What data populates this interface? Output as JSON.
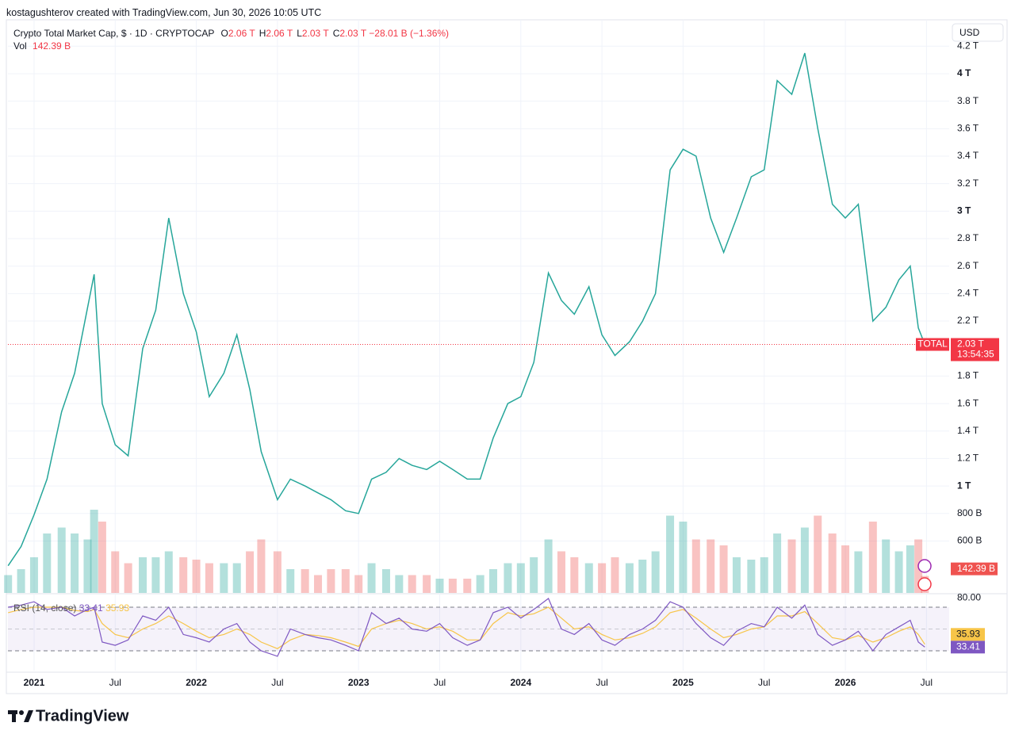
{
  "header": {
    "credit": "kostagushterov created with TradingView.com, Jun 30, 2026 10:05 UTC"
  },
  "chart_data": {
    "type": "line",
    "title": "Crypto Total Market Cap, $ · 1D · CRYPTOCAP",
    "ohlc_legend": [
      {
        "key": "O",
        "value": "2.06 T"
      },
      {
        "key": "H",
        "value": "2.06 T"
      },
      {
        "key": "L",
        "value": "2.03 T"
      },
      {
        "key": "C",
        "value": "2.03 T"
      }
    ],
    "change": "−28.01 B (−1.36%)",
    "currency": "USD",
    "x": [
      2020.84,
      2020.92,
      2021.0,
      2021.08,
      2021.17,
      2021.25,
      2021.33,
      2021.37,
      2021.42,
      2021.5,
      2021.58,
      2021.67,
      2021.75,
      2021.83,
      2021.92,
      2022.0,
      2022.08,
      2022.17,
      2022.25,
      2022.33,
      2022.4,
      2022.5,
      2022.58,
      2022.67,
      2022.75,
      2022.83,
      2022.92,
      2023.0,
      2023.08,
      2023.17,
      2023.25,
      2023.33,
      2023.42,
      2023.5,
      2023.58,
      2023.67,
      2023.75,
      2023.83,
      2023.92,
      2024.0,
      2024.08,
      2024.17,
      2024.25,
      2024.33,
      2024.42,
      2024.5,
      2024.58,
      2024.67,
      2024.75,
      2024.83,
      2024.92,
      2025.0,
      2025.08,
      2025.17,
      2025.25,
      2025.33,
      2025.42,
      2025.5,
      2025.58,
      2025.67,
      2025.75,
      2025.83,
      2025.92,
      2026.0,
      2026.08,
      2026.17,
      2026.25,
      2026.33,
      2026.4,
      2026.45,
      2026.49
    ],
    "xlim": [
      2020.839,
      2026.64
    ],
    "xticks": [
      {
        "value": 2021,
        "label": "2021"
      },
      {
        "value": 2021.5,
        "label": "Jul"
      },
      {
        "value": 2022,
        "label": "2022"
      },
      {
        "value": 2022.5,
        "label": "Jul"
      },
      {
        "value": 2023,
        "label": "2023"
      },
      {
        "value": 2023.5,
        "label": "Jul"
      },
      {
        "value": 2024,
        "label": "2024"
      },
      {
        "value": 2024.5,
        "label": "Jul"
      },
      {
        "value": 2025,
        "label": "2025"
      },
      {
        "value": 2025.5,
        "label": "Jul"
      },
      {
        "value": 2026,
        "label": "2026"
      },
      {
        "value": 2026.5,
        "label": "Jul"
      }
    ],
    "series": [
      {
        "name": "TOTAL",
        "color": "#26a69a",
        "values": [
          0.42,
          0.56,
          0.79,
          1.05,
          1.54,
          1.82,
          2.3,
          2.54,
          1.6,
          1.3,
          1.22,
          2.0,
          2.28,
          2.95,
          2.4,
          2.12,
          1.65,
          1.82,
          2.1,
          1.7,
          1.25,
          0.9,
          1.05,
          1.0,
          0.95,
          0.9,
          0.82,
          0.8,
          1.05,
          1.1,
          1.2,
          1.15,
          1.12,
          1.18,
          1.12,
          1.05,
          1.05,
          1.35,
          1.6,
          1.65,
          1.9,
          2.55,
          2.35,
          2.25,
          2.45,
          2.1,
          1.95,
          2.05,
          2.2,
          2.4,
          3.3,
          3.45,
          3.4,
          2.95,
          2.7,
          2.95,
          3.25,
          3.3,
          3.95,
          3.85,
          4.15,
          3.6,
          3.05,
          2.95,
          3.05,
          2.2,
          2.3,
          2.5,
          2.6,
          2.15,
          2.03
        ]
      }
    ],
    "ylim": [
      0.222,
      4.392
    ],
    "yticks": [
      {
        "value": 0.6,
        "label": "600 B"
      },
      {
        "value": 0.8,
        "label": "800 B"
      },
      {
        "value": 1,
        "label": "1 T"
      },
      {
        "value": 1.2,
        "label": "1.2 T"
      },
      {
        "value": 1.4,
        "label": "1.4 T"
      },
      {
        "value": 1.6,
        "label": "1.6 T"
      },
      {
        "value": 1.8,
        "label": "1.8 T"
      },
      {
        "value": 2.2,
        "label": "2.2 T"
      },
      {
        "value": 2.4,
        "label": "2.4 T"
      },
      {
        "value": 2.6,
        "label": "2.6 T"
      },
      {
        "value": 2.8,
        "label": "2.8 T"
      },
      {
        "value": 3,
        "label": "3 T"
      },
      {
        "value": 3.2,
        "label": "3.2 T"
      },
      {
        "value": 3.4,
        "label": "3.4 T"
      },
      {
        "value": 3.6,
        "label": "3.6 T"
      },
      {
        "value": 3.8,
        "label": "3.8 T"
      },
      {
        "value": 4,
        "label": "4 T"
      },
      {
        "value": 4.2,
        "label": "4.2 T"
      }
    ],
    "grid": true,
    "last_price": {
      "value": 2.03,
      "label": "2.03 T",
      "countdown": "13:54:35",
      "color": "#f23645"
    },
    "volume": {
      "name": "Vol",
      "value_label": "142.39 B",
      "up_color": "#26a69a",
      "down_color": "#ef5350",
      "ylim": [
        0,
        1000
      ],
      "values": [
        150,
        200,
        300,
        500,
        550,
        500,
        450,
        700,
        600,
        350,
        250,
        300,
        300,
        350,
        300,
        280,
        250,
        250,
        250,
        350,
        450,
        350,
        200,
        200,
        150,
        200,
        200,
        150,
        250,
        200,
        150,
        150,
        150,
        120,
        120,
        120,
        150,
        200,
        250,
        250,
        300,
        450,
        350,
        300,
        250,
        250,
        300,
        250,
        280,
        350,
        650,
        600,
        450,
        450,
        400,
        300,
        280,
        300,
        500,
        450,
        550,
        650,
        500,
        400,
        350,
        600,
        450,
        350,
        400,
        450,
        142.39
      ]
    },
    "rsi": {
      "title": "RSI (14, close)",
      "ylim": [
        11.82,
        81.64
      ],
      "yticks": [
        {
          "value": 80,
          "label": "80.00"
        }
      ],
      "bands": [
        30,
        50,
        70
      ],
      "series": [
        {
          "color": "#7e57c2",
          "last_label": "33.41",
          "values": [
            70,
            72,
            75,
            68,
            70,
            62,
            68,
            70,
            38,
            35,
            40,
            62,
            58,
            70,
            45,
            42,
            38,
            50,
            55,
            38,
            30,
            25,
            50,
            45,
            42,
            40,
            35,
            30,
            65,
            55,
            60,
            50,
            48,
            55,
            42,
            35,
            40,
            65,
            70,
            60,
            68,
            78,
            50,
            45,
            55,
            40,
            35,
            45,
            50,
            58,
            75,
            70,
            55,
            42,
            35,
            48,
            55,
            52,
            70,
            60,
            72,
            45,
            35,
            40,
            48,
            30,
            45,
            52,
            58,
            38,
            33.41
          ]
        },
        {
          "color": "#f7c548",
          "last_label": "35.93",
          "values": [
            65,
            68,
            70,
            70,
            70,
            67,
            66,
            68,
            55,
            45,
            42,
            50,
            55,
            62,
            55,
            48,
            42,
            45,
            50,
            45,
            38,
            32,
            40,
            45,
            44,
            42,
            38,
            34,
            50,
            55,
            58,
            55,
            50,
            52,
            48,
            40,
            40,
            55,
            65,
            62,
            64,
            70,
            60,
            50,
            52,
            45,
            40,
            42,
            46,
            52,
            65,
            68,
            60,
            50,
            42,
            45,
            50,
            52,
            62,
            62,
            66,
            55,
            42,
            40,
            44,
            38,
            42,
            48,
            52,
            45,
            35.93
          ]
        }
      ]
    }
  },
  "footer": {
    "brand": "TradingView"
  }
}
